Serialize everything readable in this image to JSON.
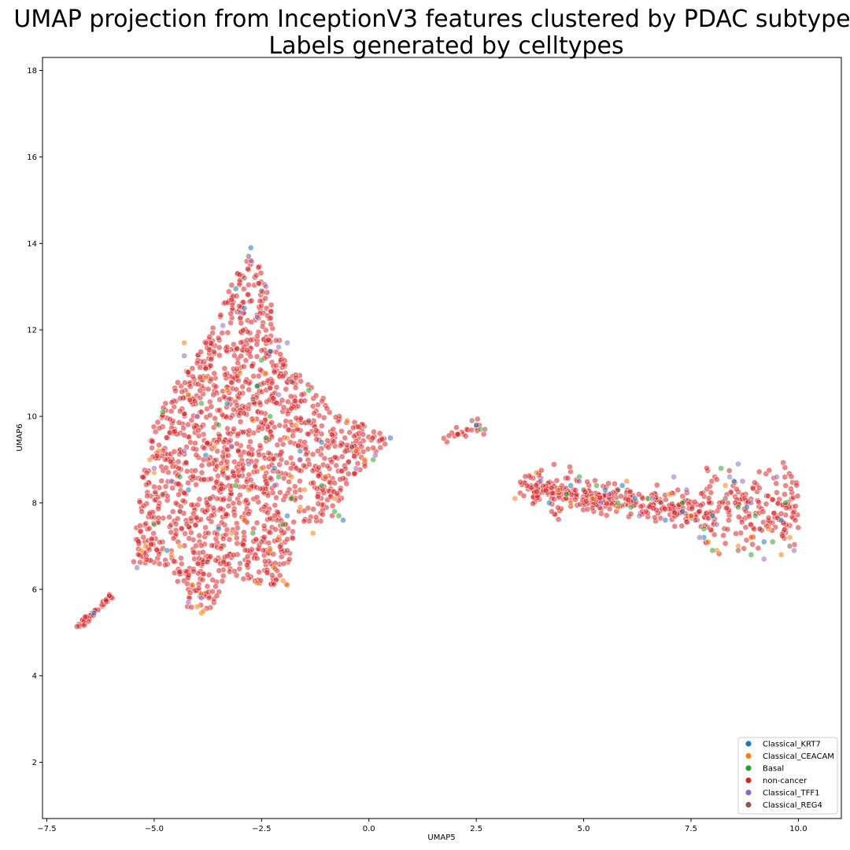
{
  "chart_data": {
    "type": "scatter",
    "title": "UMAP projection from InceptionV3 features clustered by PDAC subtype",
    "subtitle": "Labels generated by celltypes",
    "xlabel": "UMAP5",
    "ylabel": "UMAP6",
    "xlim": [
      -7.6,
      11.0
    ],
    "ylim": [
      0.7,
      18.3
    ],
    "xticks": [
      -7.5,
      -5.0,
      -2.5,
      0.0,
      2.5,
      5.0,
      7.5,
      10.0
    ],
    "xtick_labels": [
      "−7.5",
      "−5.0",
      "−2.5",
      "0.0",
      "2.5",
      "5.0",
      "7.5",
      "10.0"
    ],
    "yticks": [
      2,
      4,
      6,
      8,
      10,
      12,
      14,
      16,
      18
    ],
    "ytick_labels": [
      "2",
      "4",
      "6",
      "8",
      "10",
      "12",
      "14",
      "16",
      "18"
    ],
    "grid": false,
    "legend_position": "bottom-right",
    "series": [
      {
        "name": "Classical_KRT7",
        "color": "#1f77b4",
        "points": [
          [
            -2.75,
            13.9
          ],
          [
            -2.3,
            11.5
          ],
          [
            -3.1,
            12.95
          ],
          [
            -2.6,
            10.7
          ],
          [
            -1.6,
            9.2
          ],
          [
            -0.6,
            7.6
          ],
          [
            0.5,
            9.5
          ],
          [
            -4.2,
            8.3
          ],
          [
            -3.5,
            7.4
          ],
          [
            -2.2,
            8.8
          ],
          [
            -1.1,
            9.4
          ],
          [
            -4.7,
            6.9
          ],
          [
            -3.3,
            10.3
          ],
          [
            4.7,
            8.4
          ],
          [
            5.5,
            8.3
          ],
          [
            6.2,
            8.1
          ],
          [
            7.3,
            7.8
          ],
          [
            8.5,
            8.5
          ],
          [
            9.2,
            7.1
          ],
          [
            9.6,
            7.6
          ],
          [
            8.0,
            7.7
          ],
          [
            4.2,
            8.0
          ],
          [
            6.9,
            7.6
          ],
          [
            7.8,
            7.2
          ],
          [
            -6.4,
            5.45
          ],
          [
            -2.9,
            12.5
          ],
          [
            -3.8,
            9.1
          ],
          [
            -1.9,
            7.7
          ],
          [
            2.5,
            9.8
          ],
          [
            5.9,
            8.4
          ],
          [
            8.8,
            7.9
          ]
        ]
      },
      {
        "name": "Classical_CEACAM",
        "color": "#ff7f0e",
        "points": [
          [
            -3.9,
            5.45
          ],
          [
            -4.0,
            5.6
          ],
          [
            -3.85,
            5.5
          ],
          [
            -1.9,
            6.1
          ],
          [
            -2.0,
            6.2
          ],
          [
            -2.6,
            6.15
          ],
          [
            -5.3,
            6.9
          ],
          [
            -5.2,
            7.0
          ],
          [
            -5.0,
            8.7
          ],
          [
            -3.0,
            11.0
          ],
          [
            -3.3,
            10.6
          ],
          [
            -2.4,
            11.0
          ],
          [
            -1.8,
            8.6
          ],
          [
            -1.5,
            8.3
          ],
          [
            -1.0,
            8.6
          ],
          [
            -0.3,
            9.2
          ],
          [
            -0.1,
            9.0
          ],
          [
            -2.8,
            8.3
          ],
          [
            -3.2,
            7.3
          ],
          [
            -2.1,
            7.2
          ],
          [
            -1.6,
            7.9
          ],
          [
            -4.4,
            7.0
          ],
          [
            -4.6,
            6.8
          ],
          [
            -2.5,
            8.8
          ],
          [
            -3.6,
            9.3
          ],
          [
            -4.2,
            10.5
          ],
          [
            -1.7,
            9.8
          ],
          [
            -3.9,
            5.9
          ],
          [
            -4.1,
            6.1
          ],
          [
            -2.2,
            6.5
          ],
          [
            -3.8,
            10.9
          ],
          [
            -4.9,
            9.2
          ],
          [
            -4.3,
            11.7
          ],
          [
            -5.1,
            9.0
          ],
          [
            -3.4,
            8.8
          ],
          [
            -2.9,
            7.6
          ],
          [
            -2.3,
            6.9
          ],
          [
            -1.3,
            7.3
          ],
          [
            -0.8,
            8.1
          ],
          [
            -0.5,
            9.9
          ],
          [
            3.4,
            8.1
          ],
          [
            3.9,
            8.7
          ],
          [
            4.7,
            8.0
          ],
          [
            5.2,
            8.1
          ],
          [
            5.8,
            7.9
          ],
          [
            6.5,
            8.1
          ],
          [
            7.0,
            8.2
          ],
          [
            7.9,
            7.1
          ],
          [
            8.1,
            6.9
          ],
          [
            8.9,
            7.2
          ],
          [
            9.3,
            7.4
          ],
          [
            9.6,
            6.8
          ],
          [
            8.3,
            8.4
          ],
          [
            4.4,
            8.3
          ],
          [
            6.0,
            8.5
          ],
          [
            7.5,
            7.7
          ],
          [
            8.6,
            7.0
          ],
          [
            9.8,
            7.2
          ],
          [
            -1.9,
            9.5
          ],
          [
            -2.7,
            9.9
          ]
        ]
      },
      {
        "name": "Basal",
        "color": "#2ca02c",
        "points": [
          [
            -2.6,
            10.7
          ],
          [
            -2.4,
            9.5
          ],
          [
            -1.1,
            8.4
          ],
          [
            -0.8,
            7.8
          ],
          [
            -0.7,
            7.7
          ],
          [
            0.1,
            9.0
          ],
          [
            -2.0,
            7.5
          ],
          [
            -1.8,
            8.1
          ],
          [
            -3.1,
            8.4
          ],
          [
            -4.4,
            8.6
          ],
          [
            -2.1,
            8.6
          ],
          [
            -3.5,
            9.8
          ],
          [
            -5.0,
            7.5
          ],
          [
            -2.7,
            7.3
          ],
          [
            -1.4,
            10.6
          ],
          [
            -2.3,
            10.0
          ],
          [
            2.6,
            9.7
          ],
          [
            4.9,
            8.6
          ],
          [
            5.3,
            8.4
          ],
          [
            6.1,
            7.9
          ],
          [
            6.5,
            8.1
          ],
          [
            7.3,
            8.0
          ],
          [
            8.0,
            6.9
          ],
          [
            8.2,
            8.8
          ],
          [
            9.0,
            7.7
          ],
          [
            9.4,
            7.1
          ],
          [
            9.7,
            8.0
          ],
          [
            8.6,
            7.9
          ],
          [
            5.8,
            8.0
          ],
          [
            4.6,
            8.2
          ],
          [
            8.9,
            6.8
          ],
          [
            7.8,
            7.4
          ],
          [
            -4.8,
            10.1
          ],
          [
            -3.9,
            10.3
          ],
          [
            -2.5,
            11.3
          ]
        ]
      },
      {
        "name": "Classical_TFF1",
        "color": "#9467bd",
        "points": [
          [
            -2.75,
            13.6
          ],
          [
            -3.0,
            12.4
          ],
          [
            -2.1,
            11.6
          ],
          [
            -2.6,
            12.3
          ],
          [
            -1.6,
            9.0
          ],
          [
            0.15,
            9.1
          ],
          [
            -2.1,
            10.5
          ],
          [
            -4.2,
            5.7
          ],
          [
            -3.9,
            5.8
          ],
          [
            -5.0,
            8.8
          ],
          [
            -4.6,
            8.5
          ],
          [
            -4.0,
            10.0
          ],
          [
            -3.2,
            9.3
          ],
          [
            -2.8,
            8.9
          ],
          [
            -0.3,
            8.8
          ],
          [
            4.9,
            8.5
          ],
          [
            5.6,
            8.2
          ],
          [
            6.6,
            8.1
          ],
          [
            7.1,
            8.6
          ],
          [
            7.4,
            8.3
          ],
          [
            7.7,
            7.2
          ],
          [
            8.4,
            8.6
          ],
          [
            8.6,
            8.9
          ],
          [
            8.7,
            8.5
          ],
          [
            8.1,
            7.5
          ],
          [
            9.2,
            6.7
          ],
          [
            9.9,
            6.9
          ],
          [
            8.9,
            8.0
          ],
          [
            9.5,
            8.6
          ],
          [
            -1.9,
            11.7
          ],
          [
            -3.4,
            12.1
          ],
          [
            -2.4,
            13.0
          ],
          [
            -4.3,
            11.4
          ],
          [
            -5.4,
            6.5
          ],
          [
            -4.3,
            9.2
          ],
          [
            -2.2,
            8.4
          ],
          [
            4.0,
            8.5
          ],
          [
            5.4,
            8.0
          ],
          [
            6.3,
            7.7
          ]
        ]
      },
      {
        "name": "Classical_REG4",
        "color": "#8c564b",
        "points": [
          [
            -2.8,
            13.7
          ],
          [
            -2.9,
            13.2
          ],
          [
            -2.5,
            12.9
          ],
          [
            -1.8,
            10.8
          ],
          [
            -2.7,
            10.4
          ],
          [
            -1.4,
            9.9
          ],
          [
            -0.4,
            9.3
          ],
          [
            -4.4,
            7.8
          ],
          [
            -3.7,
            8.1
          ],
          [
            -2.5,
            7.1
          ],
          [
            -1.9,
            6.9
          ],
          [
            -3.0,
            6.6
          ],
          [
            -4.8,
            8.2
          ],
          [
            2.4,
            9.9
          ],
          [
            2.7,
            9.7
          ],
          [
            5.8,
            8.3
          ],
          [
            7.6,
            7.6
          ],
          [
            8.3,
            8.1
          ],
          [
            9.1,
            7.4
          ],
          [
            9.8,
            7.0
          ],
          [
            8.6,
            6.9
          ],
          [
            5.0,
            8.3
          ],
          [
            6.8,
            8.0
          ]
        ]
      }
    ],
    "background_series": "non-cancer"
  },
  "legend": {
    "position": "bottom-right",
    "entries": [
      {
        "label": "Classical_KRT7",
        "color": "#1f77b4"
      },
      {
        "label": "Classical_CEACAM",
        "color": "#ff7f0e"
      },
      {
        "label": "Basal",
        "color": "#2ca02c"
      },
      {
        "label": "non-cancer",
        "color": "#d62728"
      },
      {
        "label": "Classical_TFF1",
        "color": "#9467bd"
      },
      {
        "label": "Classical_REG4",
        "color": "#8c564b"
      }
    ]
  }
}
